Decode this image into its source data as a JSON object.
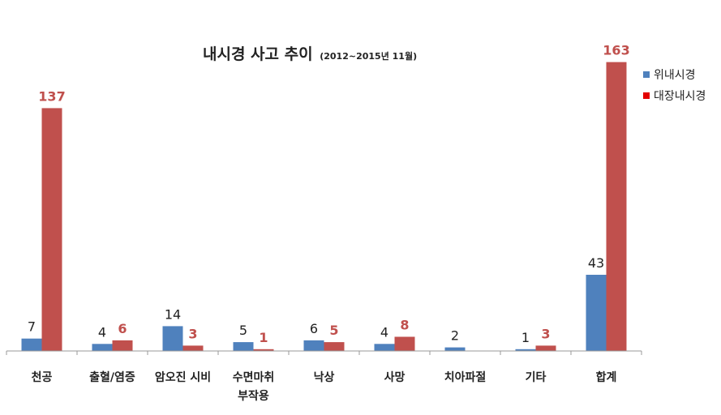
{
  "chart_data": {
    "type": "bar",
    "title": "내시경 사고 추이",
    "subtitle": "(2012~2015년 11월)",
    "categories": [
      [
        "천공"
      ],
      [
        "출혈/염증"
      ],
      [
        "암오진 시비"
      ],
      [
        "수면마취",
        "부작용"
      ],
      [
        "낙상"
      ],
      [
        "사망"
      ],
      [
        "치아파절"
      ],
      [
        "기타"
      ],
      [
        "합계"
      ]
    ],
    "series": [
      {
        "name": "위내시경",
        "color": "#4f81bd",
        "label_color": "#222222",
        "values": [
          7,
          4,
          14,
          5,
          6,
          4,
          2,
          1,
          43
        ],
        "labels": [
          "7",
          "4",
          "14",
          "5",
          "6",
          "4",
          "2",
          "1",
          "43"
        ]
      },
      {
        "name": "대장내시경",
        "color": "#c0504d",
        "label_color": "#c0504d",
        "values": [
          137,
          6,
          3,
          1,
          5,
          8,
          0,
          3,
          163
        ],
        "labels": [
          "137",
          "6",
          "3",
          "1",
          "5",
          "8",
          "",
          "3",
          "163"
        ]
      }
    ],
    "legend_position": "top-right",
    "legend_marker_colors": [
      "#4f81bd",
      "#e30000"
    ],
    "ylim": [
      0,
      166
    ],
    "grid": false
  }
}
